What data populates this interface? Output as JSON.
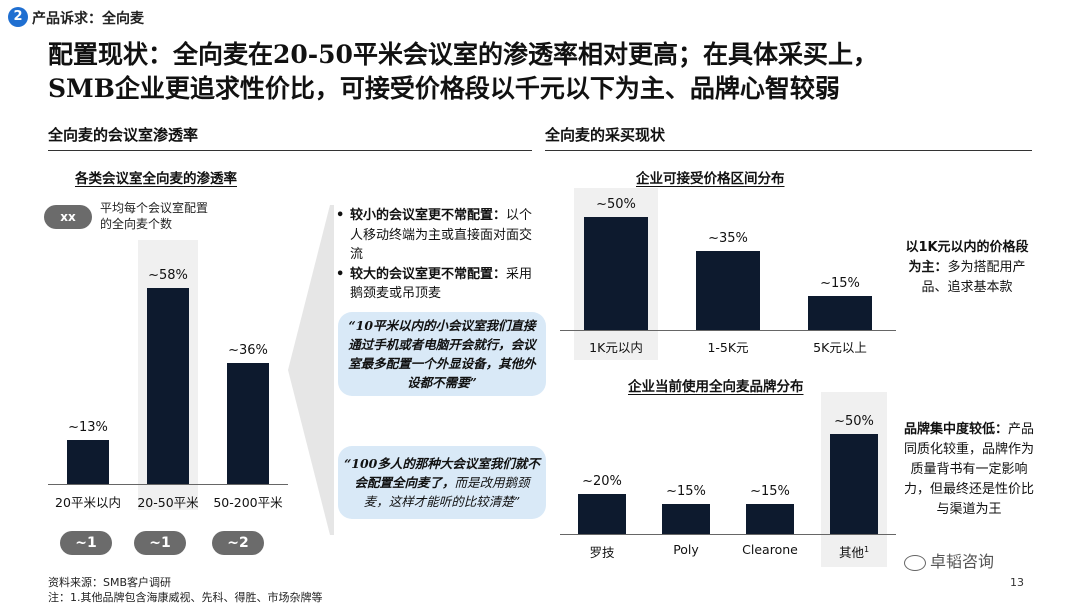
{
  "header": {
    "section_number": "2",
    "section_label": "产品诉求：全向麦",
    "headline_line1": "配置现状：全向麦在20-50平米会议室的渗透率相对更高；在具体采买上，",
    "headline_line2": "SMB企业更追求性价比，可接受价格段以千元以下为主、品牌心智较弱"
  },
  "left": {
    "column_title": "全向麦的会议室渗透率",
    "chart_title": "各类会议室全向麦的渗透率",
    "legend_pill": "xx",
    "legend_desc": "平均每个会议室配置\n的全向麦个数",
    "pills": [
      "~1",
      "~1",
      "~2"
    ]
  },
  "middle": {
    "bullet1_head": "较小的会议室更不常配置：",
    "bullet1_body": "以个人移动终端为主或直接面对面交流",
    "bullet2_head": "较大的会议室更不常配置：",
    "bullet2_body": "采用鹅颈麦或吊顶麦",
    "quote1": "“10平米以内的小会议室我们直接通过手机或者电脑开会就行，会议室最多配置一个外显设备，其他外设都不需要”",
    "quote2_bold": "“100多人的那种大会议室我们就不会配置全向麦了，",
    "quote2_rest": "而是改用鹅颈麦，这样才能听的比较清楚”"
  },
  "right": {
    "column_title": "全向麦的采买现状",
    "chart1_title": "企业可接受价格区间分布",
    "chart2_title": "企业当前使用全向麦品牌分布",
    "note1_bold": "以1K元以内的价格段为主：",
    "note1_rest": "多为搭配用产品、追求基本款",
    "note2_bold": "品牌集中度较低：",
    "note2_rest": "产品同质化较重，品牌作为质量背书有一定影响力，但最终还是性价比与渠道为王",
    "footnote_mark": "1"
  },
  "footer": {
    "source": "资料来源：SMB客户调研",
    "note": "注：1.其他品牌包含海康威视、先科、得胜、市场杂牌等",
    "page_number": "13",
    "watermark": "卓韬咨询"
  },
  "colors": {
    "bar": "#0d1a2e",
    "accent": "#1f6fd1",
    "quote_bg": "#d9e9f7",
    "pill": "#6b6b6b"
  },
  "chart_data": [
    {
      "type": "bar",
      "title": "各类会议室全向麦的渗透率",
      "categories": [
        "20平米以内",
        "20-50平米",
        "50-200平米"
      ],
      "values": [
        13,
        58,
        36
      ],
      "value_labels": [
        "~13%",
        "~58%",
        "~36%"
      ],
      "unit": "%",
      "ylim": [
        0,
        70
      ],
      "highlight": "20-50平米"
    },
    {
      "type": "bar",
      "title": "企业可接受价格区间分布",
      "categories": [
        "1K元以内",
        "1-5K元",
        "5K元以上"
      ],
      "values": [
        50,
        35,
        15
      ],
      "value_labels": [
        "~50%",
        "~35%",
        "~15%"
      ],
      "unit": "%",
      "ylim": [
        0,
        60
      ],
      "highlight": "1K元以内"
    },
    {
      "type": "bar",
      "title": "企业当前使用全向麦品牌分布",
      "categories": [
        "罗技",
        "Poly",
        "Clearone",
        "其他"
      ],
      "values": [
        20,
        15,
        15,
        50
      ],
      "value_labels": [
        "~20%",
        "~15%",
        "~15%",
        "~50%"
      ],
      "unit": "%",
      "ylim": [
        0,
        60
      ],
      "highlight": "其他"
    }
  ]
}
